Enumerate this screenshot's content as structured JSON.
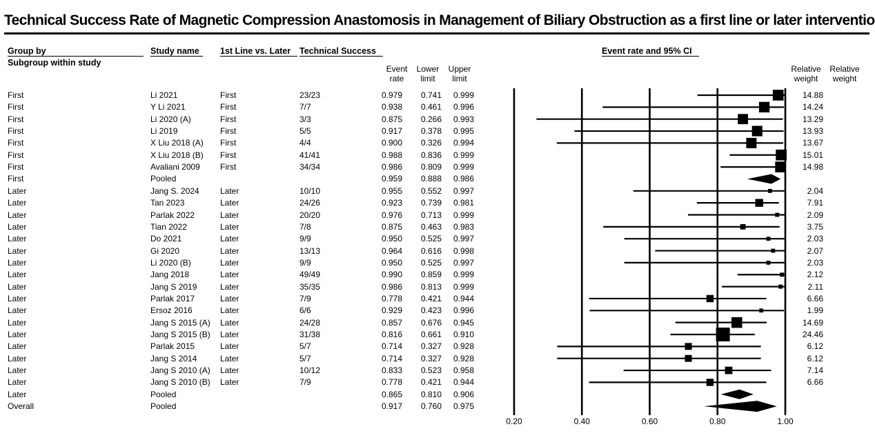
{
  "title": "Technical Success Rate of Magnetic Compression Anastomosis in Management of Biliary Obstruction as a first line or later intervention",
  "headers": {
    "group_by": "Group by",
    "subgroup": "Subgroup within study",
    "study_name": "Study name",
    "line": "1st Line vs. Later",
    "success": "Technical Success",
    "stats_title": "Event rate and 95% CI",
    "event_rate": [
      "Event",
      "rate"
    ],
    "lower_limit": [
      "Lower",
      "limit"
    ],
    "upper_limit": [
      "Upper",
      "limit"
    ],
    "rel_weight_1": [
      "Relative",
      "weight"
    ],
    "rel_weight_2": [
      "Relative",
      "weight"
    ]
  },
  "chart_data": {
    "type": "forest",
    "xlim": [
      0.2,
      1.0
    ],
    "xticks": [
      "0.20",
      "0.40",
      "0.60",
      "0.80",
      "1.00"
    ],
    "rows": [
      {
        "group": "First",
        "study": "Li 2021",
        "line": "First",
        "success": "23/23",
        "rate": "0.979",
        "lower": "0.741",
        "upper": "0.999",
        "weight": "14.88",
        "kind": "study"
      },
      {
        "group": "First",
        "study": "Y Li 2021",
        "line": "First",
        "success": "7/7",
        "rate": "0.938",
        "lower": "0.461",
        "upper": "0.996",
        "weight": "14.24",
        "kind": "study"
      },
      {
        "group": "First",
        "study": "Li 2020 (A)",
        "line": "First",
        "success": "3/3",
        "rate": "0.875",
        "lower": "0.266",
        "upper": "0.993",
        "weight": "13.29",
        "kind": "study"
      },
      {
        "group": "First",
        "study": "Li 2019",
        "line": "First",
        "success": "5/5",
        "rate": "0.917",
        "lower": "0.378",
        "upper": "0.995",
        "weight": "13.93",
        "kind": "study"
      },
      {
        "group": "First",
        "study": "X Liu 2018 (A)",
        "line": "First",
        "success": "4/4",
        "rate": "0.900",
        "lower": "0.326",
        "upper": "0.994",
        "weight": "13.67",
        "kind": "study"
      },
      {
        "group": "First",
        "study": "X Liu 2018 (B)",
        "line": "First",
        "success": "41/41",
        "rate": "0.988",
        "lower": "0.836",
        "upper": "0.999",
        "weight": "15.01",
        "kind": "study"
      },
      {
        "group": "First",
        "study": "Avaliani 2009",
        "line": "First",
        "success": "34/34",
        "rate": "0.986",
        "lower": "0.809",
        "upper": "0.999",
        "weight": "14.98",
        "kind": "study"
      },
      {
        "group": "First",
        "study": "Pooled",
        "line": "",
        "success": "",
        "rate": "0.959",
        "lower": "0.888",
        "upper": "0.986",
        "weight": "",
        "kind": "pooled"
      },
      {
        "group": "Later",
        "study": "Jang S. 2024",
        "line": "Later",
        "success": "10/10",
        "rate": "0.955",
        "lower": "0.552",
        "upper": "0.997",
        "weight": "2.04",
        "kind": "study"
      },
      {
        "group": "Later",
        "study": "Tan 2023",
        "line": "Later",
        "success": "24/26",
        "rate": "0.923",
        "lower": "0.739",
        "upper": "0.981",
        "weight": "7.91",
        "kind": "study"
      },
      {
        "group": "Later",
        "study": "Parlak 2022",
        "line": "Later",
        "success": "20/20",
        "rate": "0.976",
        "lower": "0.713",
        "upper": "0.999",
        "weight": "2.09",
        "kind": "study"
      },
      {
        "group": "Later",
        "study": "Tian 2022",
        "line": "Later",
        "success": "7/8",
        "rate": "0.875",
        "lower": "0.463",
        "upper": "0.983",
        "weight": "3.75",
        "kind": "study"
      },
      {
        "group": "Later",
        "study": "Do 2021",
        "line": "Later",
        "success": "9/9",
        "rate": "0.950",
        "lower": "0.525",
        "upper": "0.997",
        "weight": "2.03",
        "kind": "study"
      },
      {
        "group": "Later",
        "study": "Gi 2020",
        "line": "Later",
        "success": "13/13",
        "rate": "0.964",
        "lower": "0.616",
        "upper": "0.998",
        "weight": "2.07",
        "kind": "study"
      },
      {
        "group": "Later",
        "study": "Li 2020 (B)",
        "line": "Later",
        "success": "9/9",
        "rate": "0.950",
        "lower": "0.525",
        "upper": "0.997",
        "weight": "2.03",
        "kind": "study"
      },
      {
        "group": "Later",
        "study": "Jang 2018",
        "line": "Later",
        "success": "49/49",
        "rate": "0.990",
        "lower": "0.859",
        "upper": "0.999",
        "weight": "2.12",
        "kind": "study"
      },
      {
        "group": "Later",
        "study": "Jang S 2019",
        "line": "Later",
        "success": "35/35",
        "rate": "0.986",
        "lower": "0.813",
        "upper": "0.999",
        "weight": "2.11",
        "kind": "study"
      },
      {
        "group": "Later",
        "study": "Parlak 2017",
        "line": "Later",
        "success": "7/9",
        "rate": "0.778",
        "lower": "0.421",
        "upper": "0.944",
        "weight": "6.66",
        "kind": "study"
      },
      {
        "group": "Later",
        "study": "Ersoz 2016",
        "line": "Later",
        "success": "6/6",
        "rate": "0.929",
        "lower": "0.423",
        "upper": "0.996",
        "weight": "1.99",
        "kind": "study"
      },
      {
        "group": "Later",
        "study": "Jang S 2015 (A)",
        "line": "Later",
        "success": "24/28",
        "rate": "0.857",
        "lower": "0.676",
        "upper": "0.945",
        "weight": "14.69",
        "kind": "study"
      },
      {
        "group": "Later",
        "study": "Jang S 2015 (B)",
        "line": "Later",
        "success": "31/38",
        "rate": "0.816",
        "lower": "0.661",
        "upper": "0.910",
        "weight": "24.46",
        "kind": "study"
      },
      {
        "group": "Later",
        "study": "Parlak 2015",
        "line": "Later",
        "success": "5/7",
        "rate": "0.714",
        "lower": "0.327",
        "upper": "0.928",
        "weight": "6.12",
        "kind": "study"
      },
      {
        "group": "Later",
        "study": "Jang S 2014",
        "line": "Later",
        "success": "5/7",
        "rate": "0.714",
        "lower": "0.327",
        "upper": "0.928",
        "weight": "6.12",
        "kind": "study"
      },
      {
        "group": "Later",
        "study": "Jang S 2010 (A)",
        "line": "Later",
        "success": "10/12",
        "rate": "0.833",
        "lower": "0.523",
        "upper": "0.958",
        "weight": "7.14",
        "kind": "study"
      },
      {
        "group": "Later",
        "study": "Jang S 2010 (B)",
        "line": "Later",
        "success": "7/9",
        "rate": "0.778",
        "lower": "0.421",
        "upper": "0.944",
        "weight": "6.66",
        "kind": "study"
      },
      {
        "group": "Later",
        "study": "Pooled",
        "line": "",
        "success": "",
        "rate": "0.865",
        "lower": "0.810",
        "upper": "0.906",
        "weight": "",
        "kind": "pooled"
      },
      {
        "group": "Overall",
        "study": "Pooled",
        "line": "",
        "success": "",
        "rate": "0.917",
        "lower": "0.760",
        "upper": "0.975",
        "weight": "",
        "kind": "pooled"
      }
    ]
  }
}
